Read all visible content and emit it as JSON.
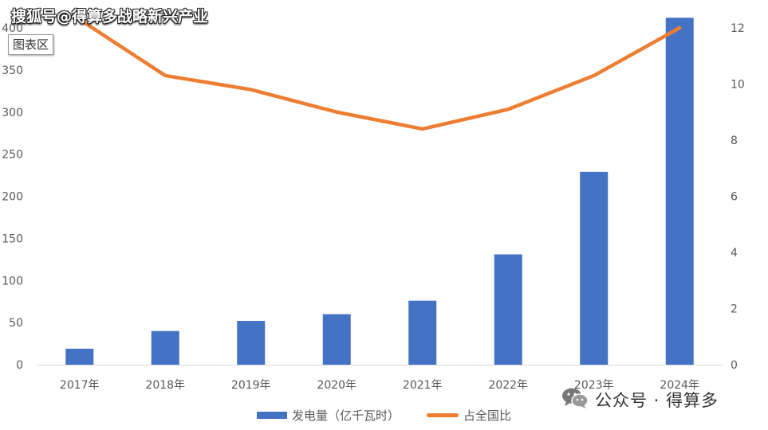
{
  "watermark_top": "搜狐号@得算多战略新兴产业",
  "chart_area_tag": "图表区",
  "watermark_bottom": "公众号 · 得算多",
  "colors": {
    "bar": "#4472C4",
    "line": "#ED7D31",
    "axis": "#D9D9D9",
    "text": "#595959"
  },
  "icons": {
    "watermark": "wechat-icon"
  },
  "chart_data": {
    "type": "bar",
    "categories": [
      "2017年",
      "2018年",
      "2019年",
      "2020年",
      "2021年",
      "2022年",
      "2023年",
      "2024年"
    ],
    "series": [
      {
        "name": "发电量（亿千瓦时）",
        "type": "bar",
        "axis": "left",
        "values": [
          19,
          40,
          52,
          60,
          76,
          131,
          229,
          412
        ]
      },
      {
        "name": "占全国比",
        "type": "line",
        "axis": "right",
        "values": [
          12.3,
          10.3,
          9.8,
          9.0,
          8.4,
          9.1,
          10.3,
          12.0
        ]
      }
    ],
    "y_left": {
      "lim": [
        0,
        400
      ],
      "ticks": [
        0,
        50,
        100,
        150,
        200,
        250,
        300,
        350,
        400
      ]
    },
    "y_right": {
      "lim": [
        0,
        12
      ],
      "ticks": [
        0,
        2,
        4,
        6,
        8,
        10,
        12
      ]
    },
    "title": "",
    "grid": false,
    "legend_position": "bottom"
  }
}
